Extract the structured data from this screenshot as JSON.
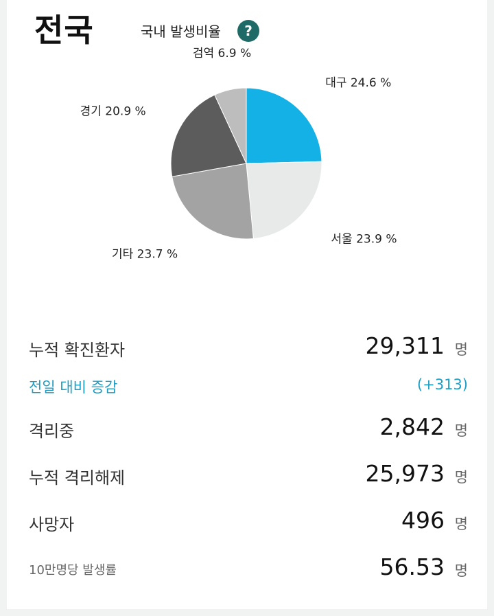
{
  "header": {
    "region": "전국",
    "ratio_label": "국내 발생비율",
    "help_icon": "question-mark-icon",
    "help_glyph": "?"
  },
  "chart_data": {
    "type": "pie",
    "title": "",
    "slices": [
      {
        "label": "대구",
        "value": 24.6,
        "text": "대구 24.6 %",
        "color": "#14b1e6"
      },
      {
        "label": "서울",
        "value": 23.9,
        "text": "서울 23.9 %",
        "color": "#e8e9e9"
      },
      {
        "label": "기타",
        "value": 23.7,
        "text": "기타 23.7 %",
        "color": "#a3a3a3"
      },
      {
        "label": "경기",
        "value": 20.9,
        "text": "경기 20.9 %",
        "color": "#5c5c5c"
      },
      {
        "label": "검역",
        "value": 6.9,
        "text": "검역 6.9 %",
        "color": "#bdbdbd"
      }
    ]
  },
  "stats": {
    "cumulative_confirmed": {
      "label": "누적 확진환자",
      "value": "29,311",
      "unit": "명"
    },
    "daily_change": {
      "label": "전일 대비 증감",
      "value": "(+313)"
    },
    "in_isolation": {
      "label": "격리중",
      "value": "2,842",
      "unit": "명"
    },
    "released": {
      "label": "누적 격리해제",
      "value": "25,973",
      "unit": "명"
    },
    "deaths": {
      "label": "사망자",
      "value": "496",
      "unit": "명"
    },
    "incidence": {
      "label": "10만명당 발생률",
      "value": "56.53",
      "unit": "명"
    }
  }
}
